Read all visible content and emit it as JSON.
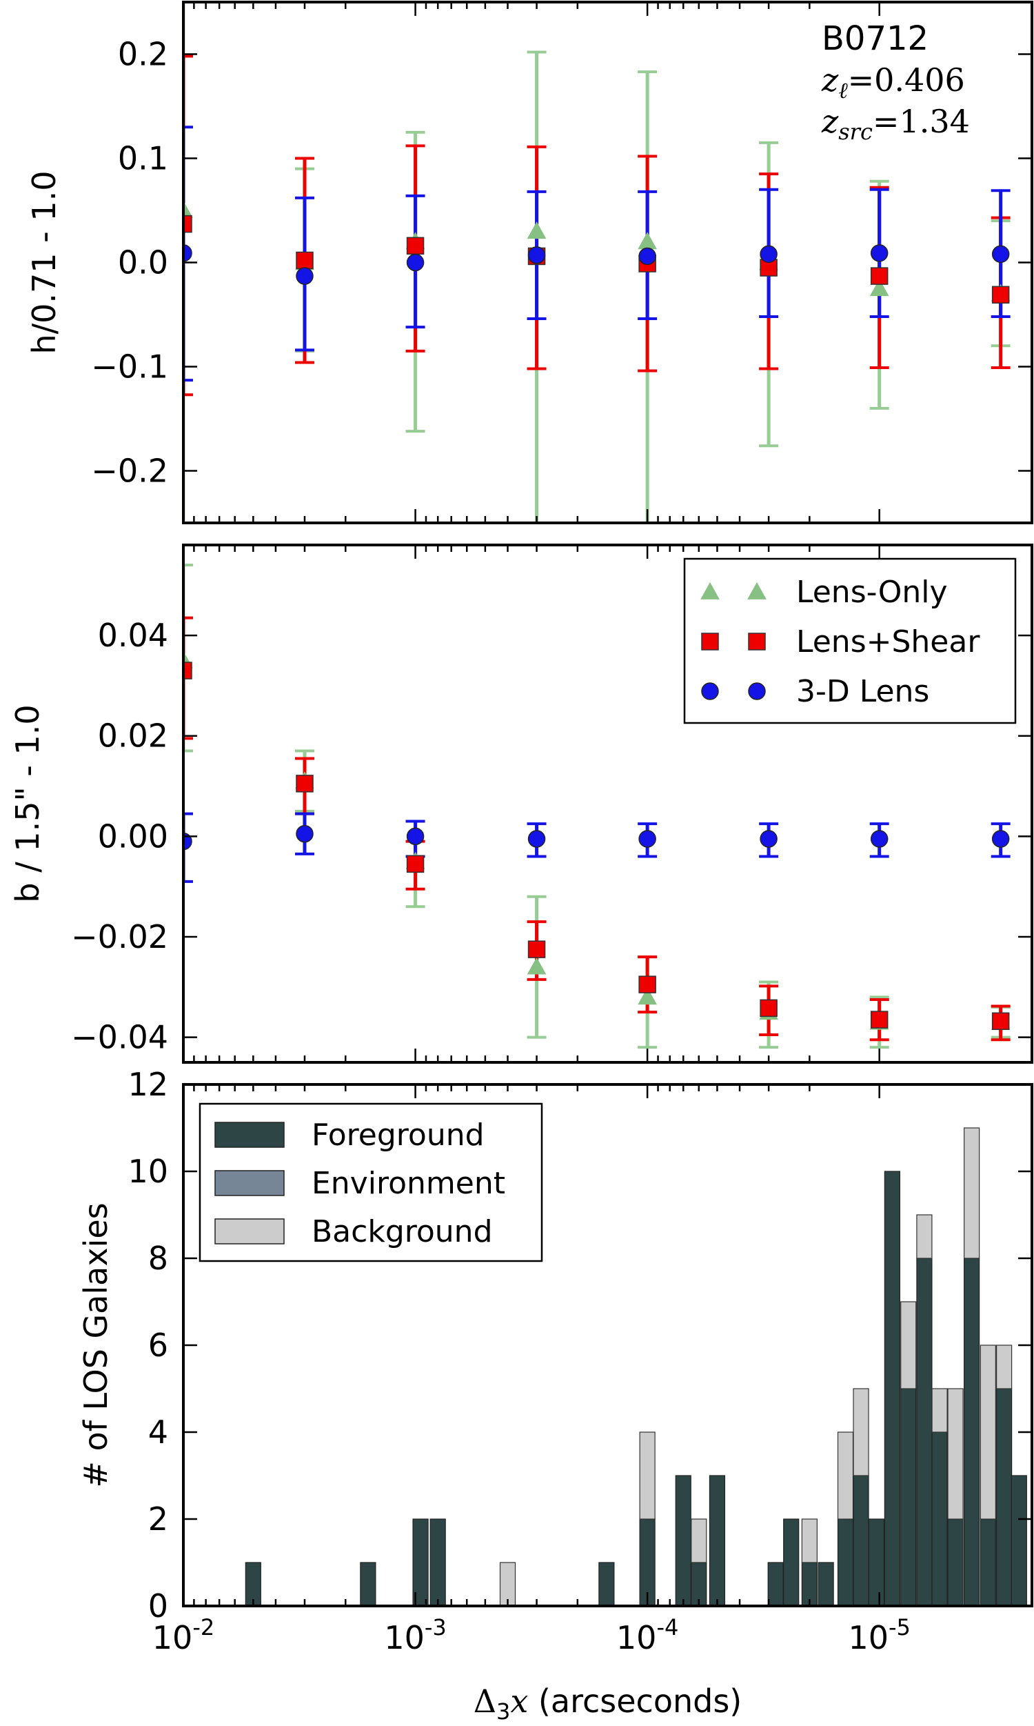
{
  "colors": {
    "lens_only": "#86c183",
    "lens_only_bar": "#98cc95",
    "lens_shear": "#ee0000",
    "lens_3d": "#1414e6",
    "foreground": "#2e4545",
    "environment": "#768696",
    "background": "#cccccc"
  },
  "chart_data": [
    {
      "type": "scatter",
      "panel": "top",
      "ylabel": "h/0.71 - 1.0",
      "xscale": "log-reversed",
      "xlim": [
        0.01,
        2.2e-06
      ],
      "ylim": [
        -0.25,
        0.25
      ],
      "yticks": [
        0.2,
        0.1,
        0.0,
        -0.1,
        -0.2
      ],
      "ytick_labels": [
        "0.2",
        "0.1",
        "0.0",
        "−0.1",
        "−0.2"
      ],
      "annotation": {
        "name": "B0712",
        "zl_label": "z",
        "zl_sub": "ℓ",
        "zl_value": "=0.406",
        "zs_label": "z",
        "zs_sub": "src",
        "zs_value": "=1.34"
      },
      "x": [
        0.01,
        0.003,
        0.001,
        0.0003,
        0.0001,
        3e-05,
        1e-05,
        3e-06
      ],
      "series": [
        {
          "name": "Lens-Only",
          "marker": "triangle",
          "y": [
            0.05,
            0.0,
            0.02,
            0.03,
            0.02,
            0.0,
            -0.025,
            -0.03
          ],
          "err": [
            [
              -0.25,
              0.25
            ],
            [
              -0.085,
              0.09
            ],
            [
              -0.162,
              0.125
            ],
            [
              -0.25,
              0.202
            ],
            [
              -0.25,
              0.183
            ],
            [
              -0.176,
              0.115
            ],
            [
              -0.14,
              0.078
            ],
            [
              -0.08,
              0.04
            ]
          ]
        },
        {
          "name": "Lens+Shear",
          "marker": "square",
          "y": [
            0.037,
            0.002,
            0.016,
            0.006,
            -0.001,
            -0.005,
            -0.013,
            -0.031
          ],
          "err": [
            [
              -0.127,
              0.198
            ],
            [
              -0.096,
              0.1
            ],
            [
              -0.085,
              0.112
            ],
            [
              -0.102,
              0.111
            ],
            [
              -0.104,
              0.102
            ],
            [
              -0.102,
              0.085
            ],
            [
              -0.101,
              0.072
            ],
            [
              -0.101,
              0.043
            ]
          ]
        },
        {
          "name": "3-D Lens",
          "marker": "circle",
          "y": [
            0.009,
            -0.013,
            0.0,
            0.007,
            0.006,
            0.008,
            0.009,
            0.008
          ],
          "err": [
            [
              -0.113,
              0.13
            ],
            [
              -0.084,
              0.062
            ],
            [
              -0.062,
              0.064
            ],
            [
              -0.054,
              0.068
            ],
            [
              -0.054,
              0.068
            ],
            [
              -0.052,
              0.07
            ],
            [
              -0.052,
              0.07
            ],
            [
              -0.052,
              0.069
            ]
          ]
        }
      ]
    },
    {
      "type": "scatter",
      "panel": "middle",
      "ylabel": "b / 1.5\" - 1.0",
      "xscale": "log-reversed",
      "xlim": [
        0.01,
        2.2e-06
      ],
      "ylim": [
        -0.045,
        0.058
      ],
      "yticks": [
        0.04,
        0.02,
        0.0,
        -0.02,
        -0.04
      ],
      "ytick_labels": [
        "0.04",
        "0.02",
        "0.00",
        "−0.02",
        "−0.04"
      ],
      "legend": {
        "placement": "top-right",
        "entries": [
          "Lens-Only",
          "Lens+Shear",
          "3-D Lens"
        ]
      },
      "x": [
        0.01,
        0.003,
        0.001,
        0.0003,
        0.0001,
        3e-05,
        1e-05,
        3e-06
      ],
      "series": [
        {
          "name": "Lens-Only",
          "marker": "triangle",
          "y": [
            0.035,
            0.011,
            -0.005,
            -0.026,
            -0.032,
            -0.035,
            -0.037,
            -0.037
          ],
          "err": [
            [
              0.017,
              0.054
            ],
            [
              0.005,
              0.017
            ],
            [
              -0.014,
              0.003
            ],
            [
              -0.04,
              -0.012
            ],
            [
              -0.042,
              -0.024
            ],
            [
              -0.042,
              -0.029
            ],
            [
              -0.042,
              -0.032
            ],
            [
              -0.04,
              -0.034
            ]
          ]
        },
        {
          "name": "Lens+Shear",
          "marker": "square",
          "y": [
            0.033,
            0.0105,
            -0.0055,
            -0.0225,
            -0.0295,
            -0.0342,
            -0.0365,
            -0.0368
          ],
          "err": [
            [
              0.0195,
              0.0435
            ],
            [
              0.0045,
              0.0155
            ],
            [
              -0.0105,
              -0.001
            ],
            [
              -0.0285,
              -0.017
            ],
            [
              -0.035,
              -0.024
            ],
            [
              -0.0395,
              -0.0298
            ],
            [
              -0.0405,
              -0.0325
            ],
            [
              -0.0405,
              -0.0338
            ]
          ]
        },
        {
          "name": "3-D Lens",
          "marker": "circle",
          "y": [
            -0.001,
            0.0005,
            0.0,
            -0.0005,
            -0.0005,
            -0.0005,
            -0.0005,
            -0.0005
          ],
          "err": [
            [
              -0.009,
              0.0045
            ],
            [
              -0.0035,
              0.0045
            ],
            [
              -0.004,
              0.003
            ],
            [
              -0.004,
              0.0025
            ],
            [
              -0.004,
              0.0025
            ],
            [
              -0.004,
              0.0025
            ],
            [
              -0.004,
              0.0025
            ],
            [
              -0.004,
              0.0025
            ]
          ]
        }
      ]
    },
    {
      "type": "bar",
      "stacked": true,
      "panel": "bottom",
      "ylabel": "# of LOS Galaxies",
      "xlabel_symbol": "Δ",
      "xlabel_sub": "3",
      "xlabel_var": "x",
      "xlabel_rest": " (arcseconds)",
      "xscale": "log-reversed",
      "xlim": [
        0.01,
        2.2e-06
      ],
      "xticks": [
        0.01,
        0.001,
        0.0001,
        1e-05
      ],
      "xtick_base": "10",
      "xtick_exponents": [
        "-2",
        "-3",
        "-4",
        "-5"
      ],
      "ylim": [
        0,
        12
      ],
      "yticks": [
        0,
        2,
        4,
        6,
        8,
        10,
        12
      ],
      "ytick_labels": [
        "0",
        "2",
        "4",
        "6",
        "8",
        "10",
        "12"
      ],
      "legend": {
        "placement": "top-left",
        "entries": [
          "Foreground",
          "Environment",
          "Background"
        ]
      },
      "bins": [
        {
          "x": 0.005,
          "foreground": 1,
          "background": 0
        },
        {
          "x": 0.0016,
          "foreground": 1,
          "background": 0
        },
        {
          "x": 0.00095,
          "foreground": 2,
          "background": 0
        },
        {
          "x": 0.0008,
          "foreground": 2,
          "background": 0
        },
        {
          "x": 0.0004,
          "foreground": 0,
          "background": 1
        },
        {
          "x": 0.00015,
          "foreground": 1,
          "background": 0
        },
        {
          "x": 0.0001,
          "foreground": 2,
          "background": 2
        },
        {
          "x": 7e-05,
          "foreground": 3,
          "background": 0
        },
        {
          "x": 6e-05,
          "foreground": 1,
          "background": 1
        },
        {
          "x": 5e-05,
          "foreground": 3,
          "background": 0
        },
        {
          "x": 2.8e-05,
          "foreground": 1,
          "background": 0
        },
        {
          "x": 2.4e-05,
          "foreground": 2,
          "background": 0
        },
        {
          "x": 2e-05,
          "foreground": 1,
          "background": 1
        },
        {
          "x": 1.7e-05,
          "foreground": 1,
          "background": 0
        },
        {
          "x": 1.4e-05,
          "foreground": 2,
          "background": 2
        },
        {
          "x": 1.2e-05,
          "foreground": 3,
          "background": 2
        },
        {
          "x": 1.03e-05,
          "foreground": 2,
          "background": 0
        },
        {
          "x": 8.8e-06,
          "foreground": 10,
          "background": 0
        },
        {
          "x": 7.5e-06,
          "foreground": 5,
          "background": 2
        },
        {
          "x": 6.4e-06,
          "foreground": 8,
          "background": 1
        },
        {
          "x": 5.5e-06,
          "foreground": 4,
          "background": 1
        },
        {
          "x": 4.7e-06,
          "foreground": 2,
          "background": 3
        },
        {
          "x": 4e-06,
          "foreground": 8,
          "background": 3
        },
        {
          "x": 3.4e-06,
          "foreground": 2,
          "background": 4
        },
        {
          "x": 2.9e-06,
          "foreground": 5,
          "background": 1
        },
        {
          "x": 2.5e-06,
          "foreground": 3,
          "background": 0
        }
      ]
    }
  ]
}
